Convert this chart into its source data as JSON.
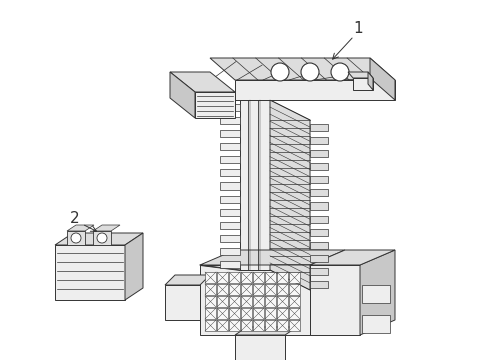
{
  "background_color": "#ffffff",
  "line_color": "#333333",
  "fill_white": "#f8f8f8",
  "fill_light": "#eeeeee",
  "fill_mid": "#dddddd",
  "fill_dark": "#c8c8c8",
  "fill_darker": "#aaaaaa",
  "label1": "1",
  "label2": "2",
  "figsize": [
    4.89,
    3.6
  ],
  "dpi": 100
}
